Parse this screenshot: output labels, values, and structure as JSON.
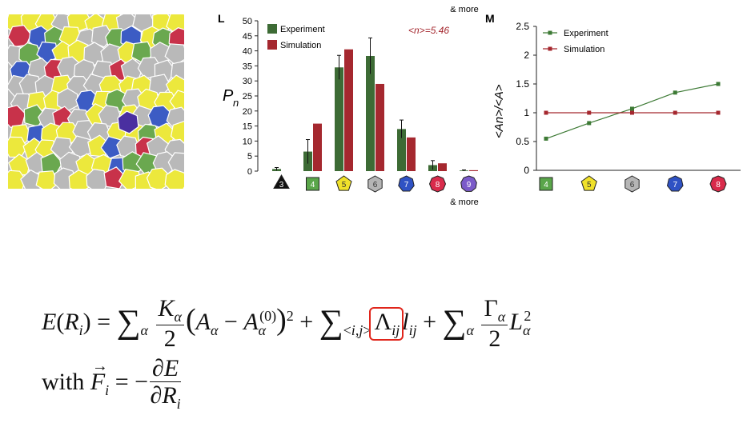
{
  "panel_L": {
    "letter": "L",
    "mean_label": "<n>=5.46",
    "xtick_suffix": "& more",
    "yticks": [
      "0",
      "5",
      "10",
      "15",
      "20",
      "25",
      "30",
      "35",
      "40",
      "45",
      "50"
    ]
  },
  "panel_M": {
    "letter": "M",
    "yticks": [
      "0",
      "0.5",
      "1",
      "1.5",
      "2",
      "2.5"
    ]
  },
  "chart_data": [
    {
      "type": "bar",
      "ylabel": "Pn",
      "categories": [
        "3",
        "4",
        "5",
        "6",
        "7",
        "8",
        "9"
      ],
      "ylim": [
        0,
        50
      ],
      "legend": "top-left",
      "series": [
        {
          "name": "Experiment",
          "values": [
            0.7,
            6.5,
            34.5,
            38.3,
            14.0,
            2.0,
            0.2
          ],
          "errors": [
            0.5,
            4.0,
            4.0,
            6.0,
            3.0,
            1.5,
            0.2
          ]
        },
        {
          "name": "Simulation",
          "values": [
            0,
            15.8,
            40.5,
            29.0,
            11.2,
            2.6,
            0.3
          ]
        }
      ],
      "category_colors": [
        "#111111",
        "#5aa64a",
        "#f0e12a",
        "#b5b5b5",
        "#2f52c4",
        "#d92b4b",
        "#7b5bc9"
      ],
      "series_colors": [
        "#3d6b35",
        "#a5282f"
      ],
      "annotation": "<n>=5.46"
    },
    {
      "type": "line",
      "ylabel": "<An>/<A>",
      "x": [
        "4",
        "5",
        "6",
        "7",
        "8"
      ],
      "ylim": [
        0,
        2.5
      ],
      "legend": "top-left",
      "series": [
        {
          "name": "Experiment",
          "values": [
            0.55,
            0.82,
            1.07,
            1.35,
            1.5
          ]
        },
        {
          "name": "Simulation",
          "values": [
            1.0,
            1.0,
            1.0,
            1.0,
            1.0
          ]
        }
      ],
      "category_colors": [
        "#5aa64a",
        "#f0e12a",
        "#b5b5b5",
        "#2f52c4",
        "#d92b4b"
      ],
      "series_colors": [
        "#3d7a35",
        "#a5282f"
      ]
    }
  ],
  "tissue": {
    "colors": {
      "gray": "#b9b9b9",
      "yellow": "#ece83c",
      "green": "#6aa84f",
      "blue": "#3c5cc4",
      "red": "#c8324a",
      "purple": "#4a2fa0"
    }
  },
  "equation": {
    "lhs": "E(R",
    "lhs_sub": "i",
    "with": "with",
    "force_sub": "i"
  }
}
